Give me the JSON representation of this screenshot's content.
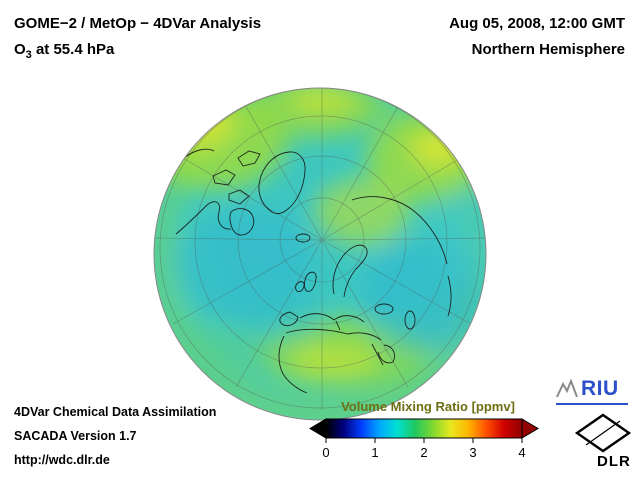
{
  "header": {
    "title_line1": "GOME−2 / MetOp − 4DVar Analysis",
    "species_prefix": "O",
    "species_sub": "3",
    "species_suffix": " at 55.4 hPa",
    "datetime": "Aug 05, 2008, 12:00 GMT",
    "region": "Northern Hemisphere"
  },
  "footer": {
    "line1": "4DVar Chemical Data Assimilation",
    "line2": "SACADA Version 1.7",
    "line3": "http://wdc.dlr.de"
  },
  "colorbar": {
    "title": "Volume Mixing Ratio [ppmv]",
    "ticks": [
      "0",
      "1",
      "2",
      "3",
      "4"
    ],
    "min": 0,
    "max": 4,
    "title_color": "#6e6e14",
    "gradient": [
      "#000000",
      "#000080",
      "#0040ff",
      "#00a8ff",
      "#00e0d0",
      "#20c860",
      "#7fd830",
      "#e8e820",
      "#ffb400",
      "#ff5000",
      "#d00000",
      "#900000"
    ]
  },
  "globe": {
    "base_color": "#3fc6c4",
    "patch_colors": [
      "#9bdc3e",
      "#e2e632",
      "#2eb8d2"
    ],
    "coastline_color": "#141414"
  },
  "logos": {
    "riu_text": "RIU",
    "riu_color": "#2b50c8",
    "dlr_text": "DLR"
  }
}
